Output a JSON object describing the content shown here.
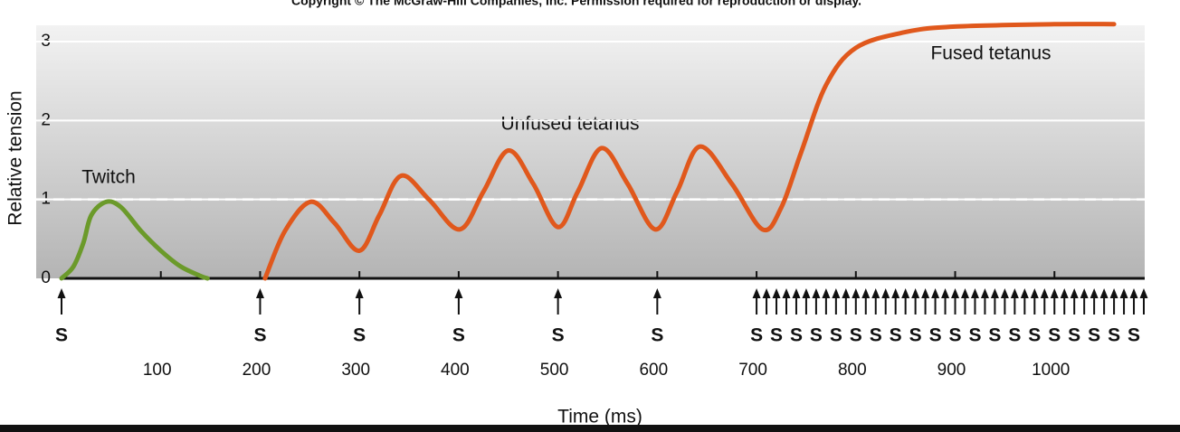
{
  "chart_data": {
    "type": "line",
    "title": "Copyright © The McGraw-Hill Companies, Inc. Permission required for reproduction or display.",
    "xlabel": "Time (ms)",
    "ylabel": "Relative tension",
    "xlim": [
      0,
      1090
    ],
    "ylim": [
      0,
      3.2
    ],
    "xticks": [
      100,
      200,
      300,
      400,
      500,
      600,
      700,
      800,
      900,
      1000
    ],
    "yticks": [
      0,
      1,
      2,
      3
    ],
    "grid": true,
    "reference_line": 1,
    "annotations": [
      "Twitch",
      "Unfused tetanus",
      "Fused tetanus"
    ],
    "stimulus_label": "S",
    "stimuli": [
      0,
      200,
      300,
      400,
      500,
      600,
      700,
      710,
      720,
      730,
      740,
      750,
      760,
      770,
      780,
      790,
      800,
      810,
      820,
      830,
      840,
      850,
      860,
      870,
      880,
      890,
      900,
      910,
      920,
      930,
      940,
      950,
      960,
      970,
      980,
      990,
      1000,
      1010,
      1020,
      1030,
      1040,
      1050,
      1060,
      1070,
      1080,
      1090
    ],
    "series": [
      {
        "color": "#6b9a2a",
        "x": [
          0,
          12,
          22,
          30,
          45,
          60,
          80,
          100,
          120,
          140,
          147
        ],
        "values": [
          0,
          0.15,
          0.45,
          0.8,
          0.97,
          0.9,
          0.6,
          0.35,
          0.15,
          0.03,
          0
        ]
      },
      {
        "color": "#e0581c",
        "x": [
          205,
          225,
          251,
          275,
          300,
          320,
          342,
          370,
          401,
          425,
          450,
          475,
          500,
          520,
          544,
          570,
          598,
          620,
          643,
          675,
          706,
          725,
          745,
          770,
          800,
          850,
          900,
          1000,
          1060
        ],
        "values": [
          0,
          0.6,
          0.97,
          0.7,
          0.35,
          0.8,
          1.3,
          1.0,
          0.62,
          1.1,
          1.62,
          1.2,
          0.65,
          1.1,
          1.65,
          1.2,
          0.62,
          1.1,
          1.67,
          1.2,
          0.62,
          0.9,
          1.6,
          2.45,
          2.92,
          3.12,
          3.19,
          3.22,
          3.22
        ]
      }
    ]
  }
}
